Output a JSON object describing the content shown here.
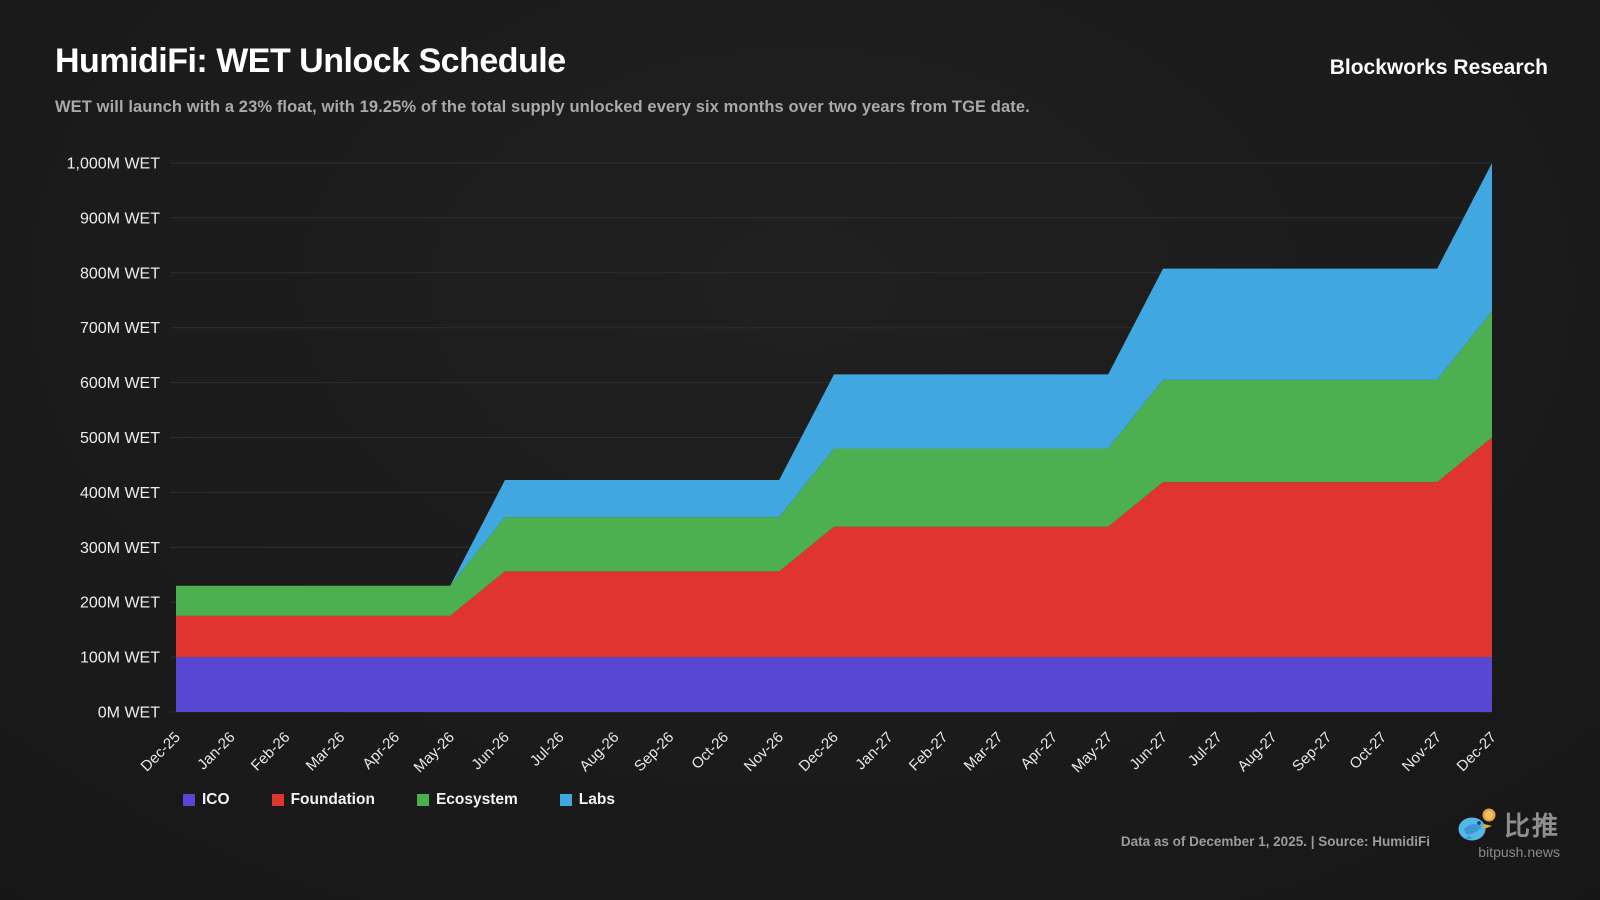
{
  "header": {
    "brand": "Blockworks Research"
  },
  "chart_data": {
    "type": "area",
    "stacked": true,
    "title": "HumidiFi: WET Unlock Schedule",
    "subtitle": "WET will launch with a 23% float, with 19.25% of the total supply unlocked every six months over two years from TGE date.",
    "categories": [
      "Dec-25",
      "Jan-26",
      "Feb-26",
      "Mar-26",
      "Apr-26",
      "May-26",
      "Jun-26",
      "Jul-26",
      "Aug-26",
      "Sep-26",
      "Oct-26",
      "Nov-26",
      "Dec-26",
      "Jan-27",
      "Feb-27",
      "Mar-27",
      "Apr-27",
      "May-27",
      "Jun-27",
      "Jul-27",
      "Aug-27",
      "Sep-27",
      "Oct-27",
      "Nov-27",
      "Dec-27"
    ],
    "series": [
      {
        "name": "ICO",
        "color": "#5847d1",
        "values": [
          100,
          100,
          100,
          100,
          100,
          100,
          100,
          100,
          100,
          100,
          100,
          100,
          100,
          100,
          100,
          100,
          100,
          100,
          100,
          100,
          100,
          100,
          100,
          100,
          100
        ]
      },
      {
        "name": "Foundation",
        "color": "#e03431",
        "values": [
          75,
          75,
          75,
          75,
          75,
          75,
          156.25,
          156.25,
          156.25,
          156.25,
          156.25,
          156.25,
          237.5,
          237.5,
          237.5,
          237.5,
          237.5,
          237.5,
          318.75,
          318.75,
          318.75,
          318.75,
          318.75,
          318.75,
          400
        ]
      },
      {
        "name": "Ecosystem",
        "color": "#4caf50",
        "values": [
          55,
          55,
          55,
          55,
          55,
          55,
          98.75,
          98.75,
          98.75,
          98.75,
          98.75,
          98.75,
          142.5,
          142.5,
          142.5,
          142.5,
          142.5,
          142.5,
          186.25,
          186.25,
          186.25,
          186.25,
          186.25,
          186.25,
          230
        ]
      },
      {
        "name": "Labs",
        "color": "#41a7e0",
        "values": [
          0,
          0,
          0,
          0,
          0,
          0,
          67.5,
          67.5,
          67.5,
          67.5,
          67.5,
          67.5,
          135,
          135,
          135,
          135,
          135,
          135,
          202.5,
          202.5,
          202.5,
          202.5,
          202.5,
          202.5,
          270
        ]
      }
    ],
    "ylim": [
      0,
      1000
    ],
    "y_ticks": [
      {
        "value": 0,
        "label": "0M WET"
      },
      {
        "value": 100,
        "label": "100M WET"
      },
      {
        "value": 200,
        "label": "200M WET"
      },
      {
        "value": 300,
        "label": "300M WET"
      },
      {
        "value": 400,
        "label": "400M WET"
      },
      {
        "value": 500,
        "label": "500M WET"
      },
      {
        "value": 600,
        "label": "600M WET"
      },
      {
        "value": 700,
        "label": "700M WET"
      },
      {
        "value": 800,
        "label": "800M WET"
      },
      {
        "value": 900,
        "label": "900M WET"
      },
      {
        "value": 1000,
        "label": "1,000M WET"
      }
    ],
    "grid": true,
    "legend_position": "bottom-left",
    "xlabel": "",
    "ylabel": ""
  },
  "footer": {
    "note": "Data as of December 1, 2025. | Source: HumidiFi",
    "watermark_cn": "比推",
    "watermark_domain": "bitpush.news"
  }
}
